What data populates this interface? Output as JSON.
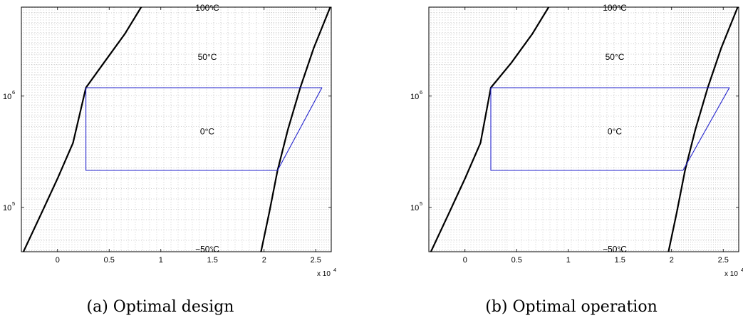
{
  "chart_data": [
    {
      "type": "line",
      "caption": "(a) Optimal design",
      "xscale": "linear",
      "yscale": "log",
      "xlim": [
        -3500,
        26500
      ],
      "ylim": [
        40000,
        6300000
      ],
      "x_exponent_label": "x 10",
      "x_exponent_power": "4",
      "xticks": [
        {
          "value": 0,
          "label": "0"
        },
        {
          "value": 5000,
          "label": "0.5"
        },
        {
          "value": 10000,
          "label": "1"
        },
        {
          "value": 15000,
          "label": "1.5"
        },
        {
          "value": 20000,
          "label": "2"
        },
        {
          "value": 25000,
          "label": "2.5"
        }
      ],
      "yticks": [
        {
          "value": 100000,
          "base": "10",
          "exp": "5"
        },
        {
          "value": 1000000,
          "base": "10",
          "exp": "6"
        }
      ],
      "isotherms": [
        {
          "label": "100°C",
          "x": 14500,
          "y": 6200000
        },
        {
          "label": "50°C",
          "x": 14500,
          "y": 2250000
        },
        {
          "label": "0°C",
          "x": 14500,
          "y": 480000
        },
        {
          "label": "−50°C",
          "x": 14500,
          "y": 42000
        }
      ],
      "saturated_liquid_line": {
        "x": [
          -3300,
          -1500,
          0,
          1500,
          2750,
          4500,
          6500,
          8100
        ],
        "y": [
          40000,
          91000,
          182000,
          380000,
          1190000,
          2000000,
          3600000,
          6300000
        ]
      },
      "saturated_vapor_line": {
        "x": [
          19700,
          20500,
          21300,
          22300,
          23500,
          24800,
          26400
        ],
        "y": [
          40000,
          90000,
          215000,
          500000,
          1190000,
          2700000,
          6300000
        ]
      },
      "cycle": {
        "x": [
          2750,
          25600,
          21300,
          2750,
          2750
        ],
        "y": [
          1190000,
          1190000,
          215000,
          215000,
          1190000
        ]
      },
      "cycle_color": "#2222cc"
    },
    {
      "type": "line",
      "caption": "(b) Optimal operation",
      "xscale": "linear",
      "yscale": "log",
      "xlim": [
        -3500,
        26500
      ],
      "ylim": [
        40000,
        6300000
      ],
      "x_exponent_label": "x 10",
      "x_exponent_power": "4",
      "xticks": [
        {
          "value": 0,
          "label": "0"
        },
        {
          "value": 5000,
          "label": "0.5"
        },
        {
          "value": 10000,
          "label": "1"
        },
        {
          "value": 15000,
          "label": "1.5"
        },
        {
          "value": 20000,
          "label": "2"
        },
        {
          "value": 25000,
          "label": "2.5"
        }
      ],
      "yticks": [
        {
          "value": 100000,
          "base": "10",
          "exp": "5"
        },
        {
          "value": 1000000,
          "base": "10",
          "exp": "6"
        }
      ],
      "isotherms": [
        {
          "label": "100°C",
          "x": 14500,
          "y": 6200000
        },
        {
          "label": "50°C",
          "x": 14500,
          "y": 2250000
        },
        {
          "label": "0°C",
          "x": 14500,
          "y": 480000
        },
        {
          "label": "−50°C",
          "x": 14500,
          "y": 42000
        }
      ],
      "saturated_liquid_line": {
        "x": [
          -3300,
          -1500,
          0,
          1500,
          2500,
          4500,
          6500,
          8100
        ],
        "y": [
          40000,
          91000,
          182000,
          380000,
          1190000,
          2000000,
          3600000,
          6300000
        ]
      },
      "saturated_vapor_line": {
        "x": [
          19700,
          20500,
          21300,
          22300,
          23500,
          24800,
          26400
        ],
        "y": [
          40000,
          90000,
          215000,
          500000,
          1190000,
          2700000,
          6300000
        ]
      },
      "cycle": {
        "x": [
          2500,
          25600,
          21100,
          2500,
          2500
        ],
        "y": [
          1190000,
          1190000,
          215000,
          215000,
          1190000
        ]
      },
      "cycle_color": "#2222cc"
    }
  ]
}
